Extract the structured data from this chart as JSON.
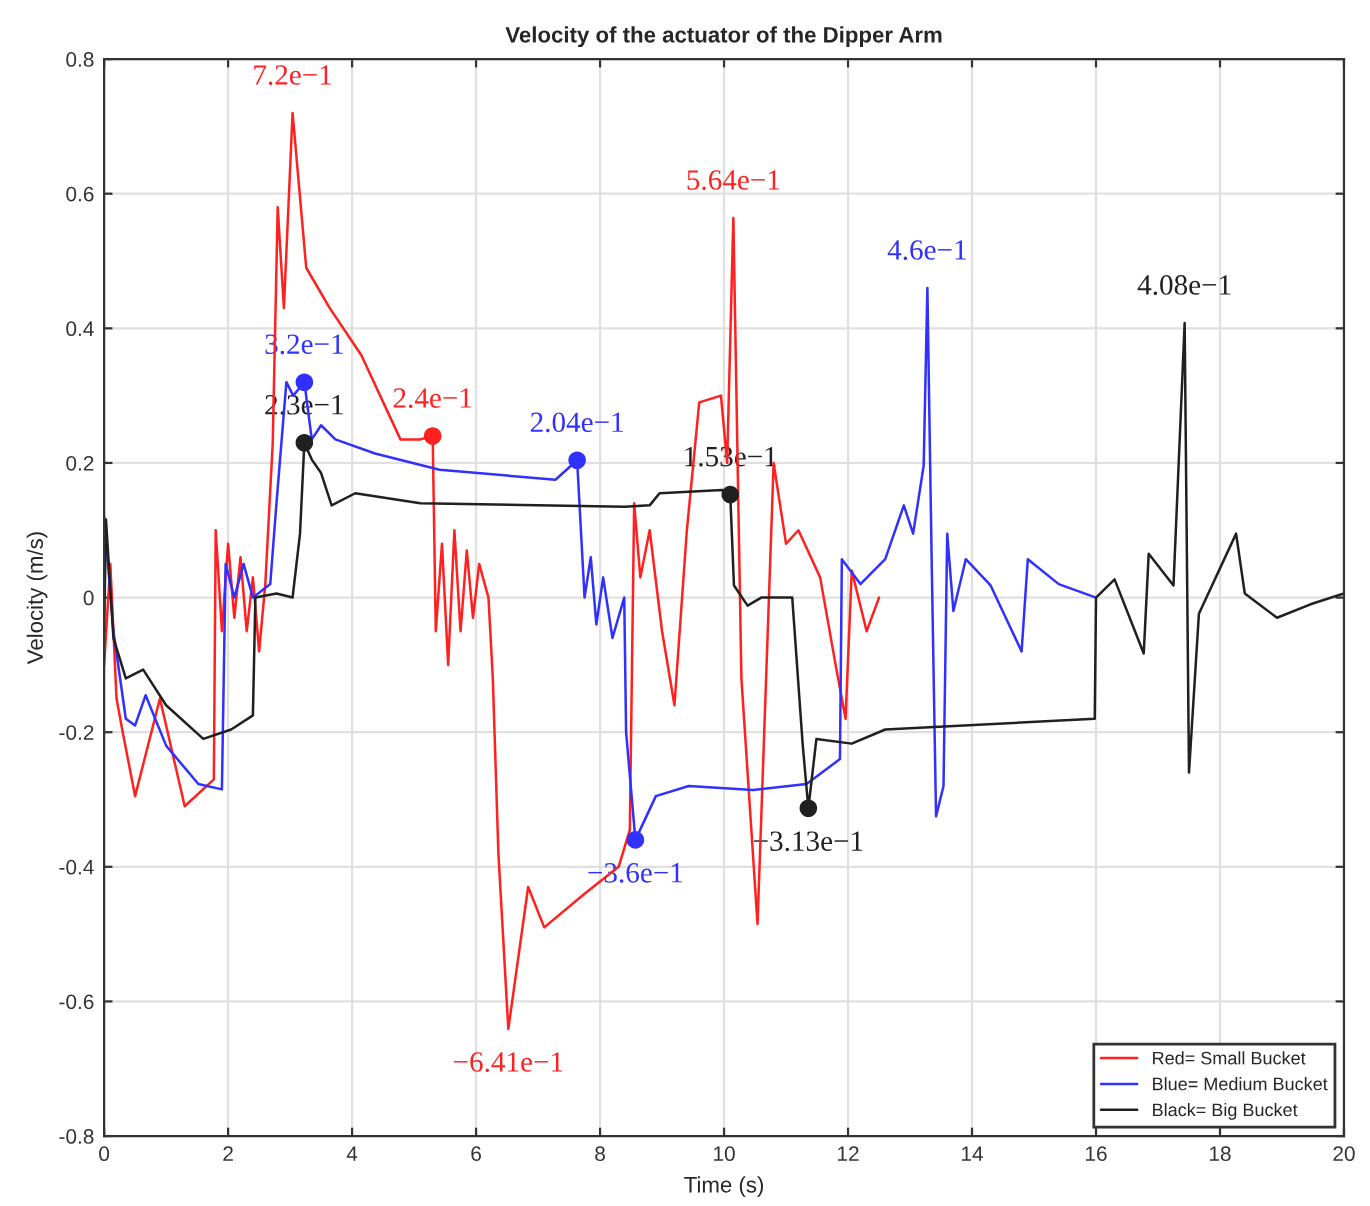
{
  "chart_data": {
    "type": "line",
    "title": "Velocity of the actuator of the Dipper Arm",
    "xlabel": "Time (s)",
    "ylabel": "Velocity (m/s)",
    "xlim": [
      0,
      20
    ],
    "xticks": [
      0,
      2,
      4,
      6,
      8,
      10,
      12,
      14,
      16,
      18,
      20
    ],
    "ylim": [
      -0.8,
      0.8
    ],
    "yticks": [
      -0.8,
      -0.6,
      -0.4,
      -0.2,
      0,
      0.2,
      0.4,
      0.6,
      0.8
    ],
    "grid": true,
    "legend": "bottom right",
    "line_style": "solid",
    "marker": "none",
    "series": [
      {
        "name": "Red= Small Bucket",
        "color": "#ff2020",
        "x": [
          0,
          0.1,
          0.2,
          0.3,
          0.5,
          0.9,
          1.3,
          1.77,
          1.8,
          1.9,
          2.0,
          2.1,
          2.2,
          2.3,
          2.4,
          2.5,
          2.6,
          2.72,
          2.8,
          2.9,
          3.04,
          3.26,
          3.64,
          4.15,
          4.78,
          5.1,
          5.3,
          5.35,
          5.45,
          5.55,
          5.65,
          5.75,
          5.85,
          5.95,
          6.05,
          6.2,
          6.27,
          6.36,
          6.52,
          6.84,
          7.1,
          7.75,
          8.3,
          8.48,
          8.55,
          8.65,
          8.8,
          9.0,
          9.2,
          9.4,
          9.6,
          9.95,
          10.05,
          10.15,
          10.28,
          10.54,
          10.8,
          11.0,
          11.2,
          11.55,
          11.8,
          11.96,
          12.06,
          12.3,
          12.5
        ],
        "values": [
          -0.1,
          0.05,
          -0.15,
          -0.2,
          -0.295,
          -0.15,
          -0.31,
          -0.27,
          0.1,
          -0.05,
          0.08,
          -0.03,
          0.06,
          -0.05,
          0.03,
          -0.08,
          0.02,
          0.23,
          0.58,
          0.43,
          0.72,
          0.49,
          0.43,
          0.36,
          0.235,
          0.235,
          0.24,
          -0.05,
          0.08,
          -0.1,
          0.1,
          -0.05,
          0.07,
          -0.03,
          0.05,
          0,
          -0.12,
          -0.38,
          -0.641,
          -0.43,
          -0.49,
          -0.44,
          -0.4,
          -0.345,
          0.14,
          0.03,
          0.1,
          -0.05,
          -0.16,
          0.1,
          0.29,
          0.3,
          0.2,
          0.564,
          -0.12,
          -0.485,
          0.2,
          0.08,
          0.1,
          0.03,
          -0.1,
          -0.18,
          0.04,
          -0.05,
          0
        ]
      },
      {
        "name": "Blue= Medium Bucket",
        "color": "#3030ff",
        "x": [
          0,
          0.15,
          0.35,
          0.5,
          0.67,
          1.0,
          1.52,
          1.9,
          1.96,
          2.1,
          2.25,
          2.4,
          2.68,
          2.78,
          2.94,
          3.05,
          3.23,
          3.35,
          3.5,
          3.73,
          4.37,
          5.41,
          7.28,
          7.63,
          7.75,
          7.85,
          7.94,
          8.05,
          8.2,
          8.39,
          8.42,
          8.57,
          8.9,
          9.43,
          10.47,
          11.33,
          11.87,
          11.9,
          12.2,
          12.6,
          12.9,
          13.05,
          13.22,
          13.28,
          13.35,
          13.42,
          13.54,
          13.6,
          13.7,
          13.9,
          14.3,
          14.8,
          14.9,
          15.4,
          16.0
        ],
        "values": [
          0.12,
          -0.05,
          -0.18,
          -0.19,
          -0.145,
          -0.22,
          -0.277,
          -0.285,
          0.05,
          0,
          0.05,
          0,
          0.02,
          0.14,
          0.32,
          0.3,
          0.32,
          0.235,
          0.256,
          0.235,
          0.214,
          0.19,
          0.175,
          0.204,
          0,
          0.06,
          -0.04,
          0.03,
          -0.06,
          0,
          -0.2,
          -0.36,
          -0.295,
          -0.28,
          -0.286,
          -0.277,
          -0.24,
          0.057,
          0.02,
          0.057,
          0.137,
          0.095,
          0.196,
          0.46,
          0.05,
          -0.325,
          -0.28,
          0.095,
          -0.02,
          0.057,
          0.018,
          -0.08,
          0.057,
          0.02,
          0
        ]
      },
      {
        "name": "Black= Big Bucket",
        "color": "#202020",
        "x": [
          0,
          0.03,
          0.15,
          0.35,
          0.63,
          1.0,
          1.6,
          2.05,
          2.4,
          2.44,
          2.78,
          3.04,
          3.16,
          3.23,
          3.35,
          3.5,
          3.67,
          4.05,
          5.1,
          8.4,
          8.8,
          8.96,
          9.97,
          10.1,
          10.16,
          10.38,
          10.6,
          11.1,
          11.27,
          11.36,
          11.49,
          12.06,
          12.6,
          15.98,
          16.0,
          16.3,
          16.77,
          16.85,
          17.25,
          17.43,
          17.5,
          17.66,
          18.26,
          18.4,
          18.92,
          19.46,
          20.0
        ],
        "values": [
          -0.05,
          0.116,
          -0.06,
          -0.12,
          -0.107,
          -0.16,
          -0.21,
          -0.196,
          -0.175,
          0,
          0.006,
          0,
          0.095,
          0.23,
          0.205,
          0.185,
          0.137,
          0.155,
          0.14,
          0.135,
          0.137,
          0.155,
          0.16,
          0.153,
          0.018,
          -0.012,
          0,
          0,
          -0.22,
          -0.313,
          -0.21,
          -0.217,
          -0.196,
          -0.18,
          0,
          0.027,
          -0.083,
          0.065,
          0.018,
          0.408,
          -0.26,
          -0.024,
          0.095,
          0.006,
          -0.03,
          -0.01,
          0.006
        ]
      },
      {
        "color": "#ff2020",
        "type": "scatter",
        "marker": "circle",
        "x": [
          5.3
        ],
        "values": [
          0.24
        ]
      },
      {
        "color": "#3030ff",
        "type": "scatter",
        "marker": "circle",
        "x": [
          3.23,
          7.63,
          8.57
        ],
        "values": [
          0.32,
          0.204,
          -0.36
        ]
      },
      {
        "color": "#202020",
        "type": "scatter",
        "marker": "circle",
        "x": [
          3.23,
          10.1,
          11.36
        ],
        "values": [
          0.23,
          0.153,
          -0.313
        ]
      }
    ],
    "annotations": [
      {
        "text": "7.2e−1",
        "x": 3.04,
        "y": 0.72
      },
      {
        "text": "3.2e−1",
        "x": 3.23,
        "y": 0.32
      },
      {
        "text": "2.3e−1",
        "x": 3.23,
        "y": 0.23
      },
      {
        "text": "2.4e−1",
        "x": 5.3,
        "y": 0.24
      },
      {
        "text": "2.04e−1",
        "x": 7.63,
        "y": 0.204
      },
      {
        "text": "−6.41e−1",
        "x": 6.52,
        "y": -0.641
      },
      {
        "text": "−3.6e−1",
        "x": 8.57,
        "y": -0.36
      },
      {
        "text": "5.64e−1",
        "x": 10.15,
        "y": 0.564
      },
      {
        "text": "1.53e−1",
        "x": 10.1,
        "y": 0.153
      },
      {
        "text": "−3.13e−1",
        "x": 11.36,
        "y": -0.313
      },
      {
        "text": "4.6e−1",
        "x": 13.28,
        "y": 0.46
      },
      {
        "text": "4.08e−1",
        "x": 17.43,
        "y": 0.408
      }
    ]
  }
}
